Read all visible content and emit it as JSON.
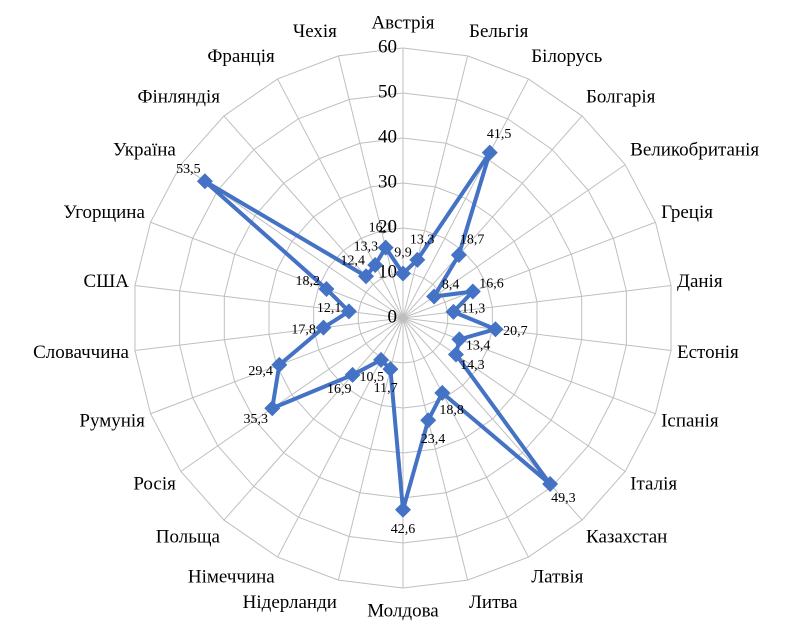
{
  "chart_data": {
    "type": "radar",
    "categories": [
      "Австрія",
      "Бельгія",
      "Білорусь",
      "Болгарія",
      "Великобританія",
      "Греція",
      "Данія",
      "Естонія",
      "Іспанія",
      "Італія",
      "Казахстан",
      "Латвія",
      "Литва",
      "Молдова",
      "Нідерланди",
      "Німеччина",
      "Польща",
      "Росія",
      "Румунія",
      "Словаччина",
      "США",
      "Угорщина",
      "Україна",
      "Фінляндія",
      "Франція",
      "Чехія"
    ],
    "values": [
      9.9,
      13.3,
      41.5,
      18.7,
      8.4,
      16.6,
      11.3,
      20.7,
      13.4,
      14.3,
      49.3,
      18.8,
      23.4,
      42.6,
      11.7,
      10.5,
      16.9,
      35.3,
      29.4,
      17.8,
      12.1,
      18.2,
      53.5,
      12.4,
      13.3,
      16.1
    ],
    "value_labels": [
      "9,9",
      "13,3",
      "41,5",
      "18,7",
      "8,4",
      "16,6",
      "11,3",
      "20,7",
      "13,4",
      "14,3",
      "49,3",
      "18,8",
      "23,4",
      "42,6",
      "11,7",
      "10,5",
      "16,9",
      "35,3",
      "29,4",
      "17,8",
      "12,1",
      "18,2",
      "53,5",
      "12,4",
      "13,3",
      "16,1"
    ],
    "color": "#4472c4",
    "ylim": [
      0,
      60
    ],
    "yticks": [
      0,
      10,
      20,
      30,
      40,
      50,
      60
    ],
    "grid": true
  }
}
